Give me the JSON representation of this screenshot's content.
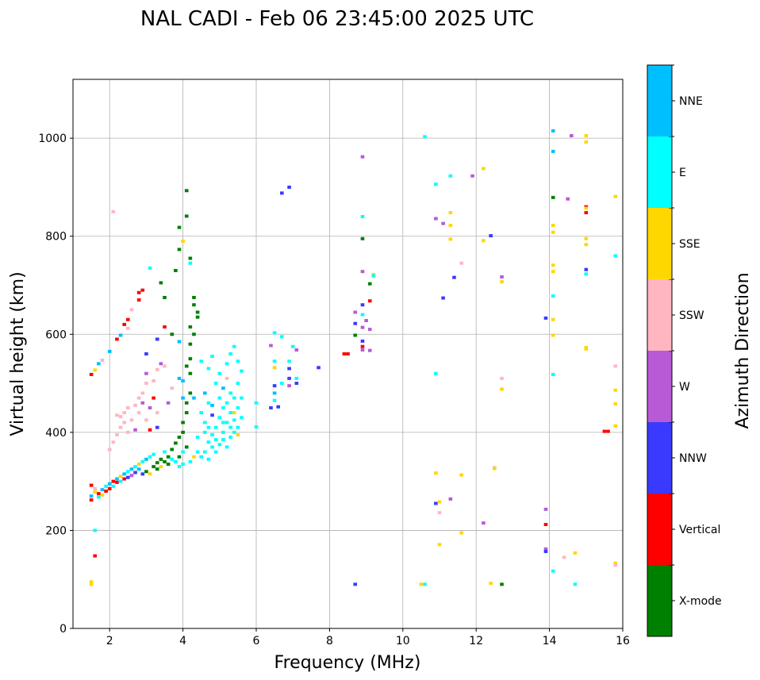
{
  "chart_data": {
    "type": "scatter",
    "title": "NAL CADI - Feb 06 23:45:00 2025 UTC",
    "xlabel": "Frequency (MHz)",
    "ylabel": "Virtual height (km)",
    "xlim": [
      1,
      16
    ],
    "ylim": [
      0,
      1120
    ],
    "xticks": [
      2,
      4,
      6,
      8,
      10,
      12,
      14,
      16
    ],
    "yticks": [
      0,
      200,
      400,
      600,
      800,
      1000
    ],
    "grid": true,
    "colorbar": {
      "label": "Azimuth Direction",
      "categories": [
        {
          "name": "X-mode",
          "color": "#008000"
        },
        {
          "name": "Vertical",
          "color": "#ff0000"
        },
        {
          "name": "NNW",
          "color": "#3a3aff"
        },
        {
          "name": "W",
          "color": "#b85ad6"
        },
        {
          "name": "SSW",
          "color": "#ffb6c1"
        },
        {
          "name": "SSE",
          "color": "#ffd700"
        },
        {
          "name": "E",
          "color": "#00ffff"
        },
        {
          "name": "NNE",
          "color": "#00bfff"
        }
      ]
    },
    "point_format": [
      "frequency_mhz",
      "virtual_height_km",
      "category_index"
    ],
    "points": [
      [
        10.6,
        1003,
        6
      ],
      [
        14.1,
        1015,
        7
      ],
      [
        14.1,
        973,
        7
      ],
      [
        14.6,
        1005,
        3
      ],
      [
        15.0,
        1005,
        5
      ],
      [
        15.0,
        992,
        5
      ],
      [
        8.9,
        962,
        3
      ],
      [
        10.9,
        906,
        6
      ],
      [
        11.3,
        923,
        6
      ],
      [
        11.9,
        923,
        3
      ],
      [
        12.2,
        938,
        5
      ],
      [
        14.1,
        879,
        0
      ],
      [
        14.5,
        876,
        3
      ],
      [
        15.0,
        860,
        1
      ],
      [
        15.0,
        857,
        5
      ],
      [
        15.0,
        848,
        1
      ],
      [
        15.8,
        881,
        5
      ],
      [
        11.3,
        848,
        5
      ],
      [
        10.9,
        836,
        3
      ],
      [
        11.1,
        826,
        3
      ],
      [
        11.3,
        822,
        5
      ],
      [
        12.4,
        801,
        2
      ],
      [
        12.2,
        791,
        5
      ],
      [
        11.3,
        794,
        5
      ],
      [
        14.1,
        822,
        5
      ],
      [
        14.1,
        808,
        5
      ],
      [
        15.0,
        795,
        5
      ],
      [
        15.0,
        783,
        5
      ],
      [
        15.8,
        760,
        6
      ],
      [
        14.1,
        741,
        5
      ],
      [
        14.1,
        728,
        5
      ],
      [
        15.0,
        732,
        2
      ],
      [
        15.0,
        723,
        6
      ],
      [
        12.7,
        717,
        3
      ],
      [
        12.7,
        707,
        5
      ],
      [
        11.6,
        745,
        4
      ],
      [
        11.4,
        716,
        2
      ],
      [
        11.1,
        674,
        2
      ],
      [
        14.1,
        678,
        6
      ],
      [
        13.9,
        633,
        2
      ],
      [
        14.1,
        630,
        5
      ],
      [
        14.1,
        598,
        5
      ],
      [
        15.0,
        573,
        5
      ],
      [
        15.0,
        570,
        5
      ],
      [
        15.8,
        535,
        4
      ],
      [
        14.1,
        518,
        6
      ],
      [
        12.7,
        510,
        4
      ],
      [
        12.7,
        488,
        5
      ],
      [
        15.8,
        486,
        5
      ],
      [
        15.8,
        458,
        5
      ],
      [
        15.8,
        413,
        5
      ],
      [
        15.5,
        402,
        1
      ],
      [
        15.6,
        402,
        1
      ],
      [
        10.9,
        520,
        6
      ],
      [
        12.5,
        328,
        4
      ],
      [
        12.5,
        326,
        5
      ],
      [
        10.9,
        317,
        5
      ],
      [
        11.6,
        313,
        5
      ],
      [
        11.3,
        264,
        3
      ],
      [
        10.9,
        255,
        2
      ],
      [
        11.0,
        258,
        5
      ],
      [
        11.0,
        236,
        4
      ],
      [
        12.2,
        215,
        3
      ],
      [
        13.9,
        243,
        3
      ],
      [
        13.9,
        212,
        1
      ],
      [
        11.6,
        195,
        5
      ],
      [
        11.0,
        171,
        5
      ],
      [
        13.9,
        162,
        3
      ],
      [
        13.9,
        157,
        2
      ],
      [
        14.4,
        145,
        4
      ],
      [
        14.7,
        154,
        5
      ],
      [
        15.8,
        133,
        5
      ],
      [
        15.8,
        129,
        4
      ],
      [
        14.1,
        117,
        6
      ],
      [
        14.7,
        90,
        6
      ],
      [
        12.4,
        92,
        5
      ],
      [
        12.7,
        90,
        0
      ],
      [
        10.6,
        90,
        6
      ],
      [
        10.5,
        90,
        5
      ],
      [
        8.7,
        90,
        2
      ],
      [
        6.7,
        888,
        2
      ],
      [
        6.9,
        900,
        2
      ],
      [
        4.1,
        893,
        0
      ],
      [
        4.1,
        841,
        0
      ],
      [
        3.9,
        818,
        0
      ],
      [
        8.9,
        840,
        6
      ],
      [
        8.9,
        795,
        0
      ],
      [
        8.9,
        728,
        3
      ],
      [
        9.2,
        722,
        5
      ],
      [
        9.2,
        719,
        6
      ],
      [
        9.1,
        703,
        0
      ],
      [
        9.1,
        668,
        1
      ],
      [
        8.9,
        660,
        2
      ],
      [
        8.7,
        645,
        3
      ],
      [
        8.9,
        640,
        6
      ],
      [
        8.7,
        622,
        2
      ],
      [
        9.0,
        628,
        3
      ],
      [
        8.9,
        614,
        3
      ],
      [
        9.1,
        610,
        3
      ],
      [
        8.7,
        598,
        0
      ],
      [
        8.9,
        586,
        2
      ],
      [
        8.9,
        575,
        1
      ],
      [
        8.9,
        568,
        3
      ],
      [
        9.1,
        567,
        3
      ],
      [
        8.5,
        560,
        1
      ],
      [
        8.4,
        560,
        1
      ],
      [
        7.7,
        532,
        2
      ],
      [
        7.0,
        575,
        6
      ],
      [
        7.1,
        568,
        3
      ],
      [
        6.7,
        595,
        6
      ],
      [
        6.5,
        603,
        6
      ],
      [
        6.4,
        577,
        3
      ],
      [
        6.5,
        545,
        6
      ],
      [
        6.5,
        532,
        5
      ],
      [
        6.5,
        495,
        2
      ],
      [
        6.5,
        480,
        7
      ],
      [
        6.5,
        465,
        6
      ],
      [
        6.4,
        450,
        2
      ],
      [
        6.6,
        452,
        2
      ],
      [
        6.0,
        460,
        6
      ],
      [
        6.0,
        411,
        6
      ],
      [
        6.9,
        510,
        2
      ],
      [
        6.9,
        495,
        3
      ],
      [
        7.1,
        510,
        6
      ],
      [
        7.1,
        500,
        2
      ],
      [
        6.7,
        500,
        6
      ],
      [
        6.9,
        530,
        2
      ],
      [
        6.9,
        545,
        6
      ],
      [
        1.5,
        518,
        1
      ],
      [
        1.6,
        527,
        5
      ],
      [
        1.7,
        540,
        7
      ],
      [
        1.8,
        547,
        4
      ],
      [
        2.0,
        565,
        7
      ],
      [
        2.2,
        590,
        1
      ],
      [
        2.3,
        598,
        7
      ],
      [
        2.4,
        620,
        1
      ],
      [
        2.5,
        630,
        1
      ],
      [
        2.5,
        612,
        4
      ],
      [
        2.6,
        650,
        4
      ],
      [
        2.8,
        670,
        1
      ],
      [
        2.8,
        685,
        1
      ],
      [
        2.9,
        690,
        1
      ],
      [
        3.1,
        735,
        6
      ],
      [
        3.4,
        705,
        0
      ],
      [
        3.5,
        675,
        0
      ],
      [
        3.8,
        730,
        0
      ],
      [
        3.9,
        773,
        0
      ],
      [
        4.0,
        790,
        5
      ],
      [
        4.2,
        755,
        0
      ],
      [
        4.2,
        745,
        6
      ],
      [
        4.3,
        675,
        0
      ],
      [
        4.3,
        660,
        0
      ],
      [
        4.4,
        645,
        0
      ],
      [
        4.4,
        635,
        0
      ],
      [
        3.5,
        615,
        1
      ],
      [
        3.3,
        590,
        2
      ],
      [
        3.0,
        560,
        2
      ],
      [
        3.7,
        600,
        0
      ],
      [
        1.6,
        148,
        1
      ],
      [
        1.6,
        200,
        6
      ],
      [
        1.5,
        95,
        5
      ],
      [
        1.5,
        90,
        5
      ],
      [
        2.1,
        850,
        4
      ],
      [
        1.5,
        262,
        1
      ],
      [
        1.5,
        270,
        7
      ],
      [
        1.6,
        278,
        5
      ],
      [
        1.6,
        285,
        4
      ],
      [
        1.5,
        292,
        1
      ],
      [
        1.7,
        268,
        6
      ],
      [
        1.7,
        275,
        1
      ],
      [
        1.8,
        283,
        7
      ],
      [
        1.8,
        272,
        5
      ],
      [
        1.9,
        290,
        6
      ],
      [
        1.9,
        280,
        1
      ],
      [
        2.0,
        295,
        7
      ],
      [
        2.0,
        285,
        1
      ],
      [
        2.1,
        300,
        1
      ],
      [
        2.1,
        290,
        6
      ],
      [
        2.2,
        305,
        7
      ],
      [
        2.2,
        298,
        1
      ],
      [
        2.3,
        310,
        5
      ],
      [
        2.3,
        300,
        6
      ],
      [
        2.4,
        315,
        7
      ],
      [
        2.4,
        305,
        1
      ],
      [
        2.5,
        320,
        6
      ],
      [
        2.5,
        308,
        2
      ],
      [
        2.6,
        325,
        7
      ],
      [
        2.6,
        312,
        3
      ],
      [
        2.7,
        330,
        6
      ],
      [
        2.7,
        318,
        2
      ],
      [
        2.8,
        335,
        5
      ],
      [
        2.8,
        325,
        7
      ],
      [
        2.9,
        340,
        6
      ],
      [
        2.9,
        315,
        2
      ],
      [
        3.0,
        345,
        7
      ],
      [
        3.0,
        320,
        0
      ],
      [
        3.1,
        350,
        6
      ],
      [
        3.1,
        315,
        5
      ],
      [
        3.2,
        330,
        0
      ],
      [
        3.2,
        355,
        6
      ],
      [
        3.3,
        325,
        0
      ],
      [
        3.3,
        338,
        0
      ],
      [
        3.4,
        330,
        5
      ],
      [
        3.4,
        345,
        0
      ],
      [
        3.5,
        340,
        0
      ],
      [
        3.5,
        360,
        6
      ],
      [
        3.6,
        335,
        0
      ],
      [
        3.6,
        350,
        0
      ],
      [
        3.7,
        345,
        6
      ],
      [
        3.7,
        365,
        0
      ],
      [
        3.8,
        340,
        6
      ],
      [
        3.8,
        378,
        0
      ],
      [
        3.9,
        350,
        0
      ],
      [
        3.9,
        390,
        0
      ],
      [
        4.0,
        360,
        6
      ],
      [
        4.0,
        400,
        0
      ],
      [
        4.1,
        370,
        0
      ],
      [
        4.0,
        420,
        0
      ],
      [
        4.1,
        440,
        0
      ],
      [
        4.1,
        460,
        0
      ],
      [
        4.2,
        480,
        0
      ],
      [
        4.2,
        520,
        0
      ],
      [
        4.1,
        535,
        0
      ],
      [
        4.2,
        550,
        0
      ],
      [
        4.0,
        470,
        7
      ],
      [
        4.0,
        505,
        7
      ],
      [
        3.9,
        510,
        7
      ],
      [
        4.2,
        580,
        0
      ],
      [
        4.3,
        600,
        0
      ],
      [
        4.2,
        615,
        0
      ],
      [
        3.9,
        585,
        7
      ],
      [
        4.3,
        350,
        5
      ],
      [
        4.2,
        340,
        6
      ],
      [
        3.9,
        330,
        6
      ],
      [
        4.0,
        335,
        6
      ],
      [
        2.1,
        380,
        4
      ],
      [
        2.2,
        395,
        4
      ],
      [
        2.3,
        410,
        4
      ],
      [
        2.3,
        432,
        4
      ],
      [
        2.4,
        420,
        4
      ],
      [
        2.4,
        440,
        4
      ],
      [
        2.5,
        450,
        4
      ],
      [
        2.5,
        400,
        4
      ],
      [
        2.6,
        425,
        4
      ],
      [
        2.7,
        455,
        4
      ],
      [
        2.7,
        405,
        3
      ],
      [
        2.8,
        470,
        4
      ],
      [
        2.8,
        440,
        4
      ],
      [
        2.9,
        460,
        3
      ],
      [
        2.9,
        480,
        4
      ],
      [
        3.0,
        500,
        4
      ],
      [
        3.0,
        520,
        3
      ],
      [
        3.1,
        450,
        3
      ],
      [
        3.2,
        470,
        1
      ],
      [
        3.3,
        440,
        4
      ],
      [
        3.4,
        540,
        3
      ],
      [
        3.3,
        528,
        4
      ],
      [
        3.2,
        505,
        4
      ],
      [
        3.0,
        425,
        4
      ],
      [
        3.1,
        405,
        1
      ],
      [
        3.3,
        410,
        2
      ],
      [
        3.5,
        535,
        4
      ],
      [
        3.7,
        490,
        4
      ],
      [
        3.6,
        460,
        3
      ],
      [
        2.2,
        435,
        4
      ],
      [
        2.0,
        365,
        4
      ],
      [
        4.5,
        350,
        6
      ],
      [
        4.6,
        360,
        6
      ],
      [
        4.7,
        345,
        6
      ],
      [
        4.7,
        380,
        6
      ],
      [
        4.8,
        370,
        6
      ],
      [
        4.8,
        395,
        6
      ],
      [
        4.9,
        360,
        6
      ],
      [
        4.9,
        410,
        6
      ],
      [
        5.0,
        375,
        6
      ],
      [
        5.0,
        430,
        6
      ],
      [
        5.1,
        385,
        6
      ],
      [
        5.1,
        400,
        6
      ],
      [
        5.1,
        450,
        6
      ],
      [
        5.2,
        370,
        6
      ],
      [
        5.2,
        420,
        6
      ],
      [
        5.2,
        460,
        6
      ],
      [
        5.3,
        390,
        6
      ],
      [
        5.3,
        440,
        6
      ],
      [
        5.3,
        480,
        6
      ],
      [
        5.4,
        400,
        6
      ],
      [
        5.4,
        425,
        6
      ],
      [
        5.4,
        470,
        6
      ],
      [
        5.5,
        410,
        6
      ],
      [
        5.5,
        450,
        6
      ],
      [
        5.5,
        500,
        6
      ],
      [
        5.6,
        430,
        6
      ],
      [
        5.6,
        470,
        6
      ],
      [
        5.0,
        520,
        6
      ],
      [
        5.2,
        540,
        6
      ],
      [
        5.3,
        560,
        6
      ],
      [
        5.4,
        575,
        6
      ],
      [
        5.5,
        545,
        6
      ],
      [
        4.6,
        480,
        7
      ],
      [
        4.7,
        460,
        6
      ],
      [
        4.6,
        420,
        6
      ],
      [
        4.5,
        440,
        6
      ],
      [
        4.4,
        390,
        6
      ],
      [
        4.3,
        470,
        7
      ],
      [
        4.8,
        455,
        7
      ],
      [
        4.9,
        500,
        6
      ],
      [
        5.1,
        490,
        7
      ],
      [
        5.0,
        470,
        6
      ],
      [
        5.6,
        525,
        6
      ],
      [
        4.7,
        530,
        6
      ],
      [
        4.5,
        545,
        6
      ],
      [
        4.8,
        555,
        6
      ],
      [
        5.4,
        440,
        5
      ],
      [
        5.2,
        510,
        4
      ],
      [
        4.8,
        435,
        2
      ],
      [
        5.5,
        395,
        5
      ],
      [
        4.4,
        360,
        6
      ],
      [
        4.6,
        400,
        6
      ],
      [
        4.9,
        385,
        6
      ],
      [
        5.3,
        410,
        6
      ],
      [
        5.1,
        420,
        6
      ],
      [
        4.7,
        410,
        6
      ]
    ]
  }
}
